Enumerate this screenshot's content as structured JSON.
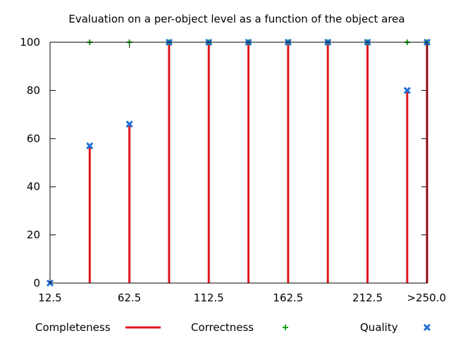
{
  "chart_data": {
    "type": "bar",
    "title": "Evaluation on a per-object level as a function of the object area",
    "xlabel": "",
    "ylabel": "",
    "x": [
      12.5,
      37.5,
      62.5,
      87.5,
      112.5,
      137.5,
      162.5,
      187.5,
      212.5,
      237.5,
      250.0
    ],
    "xlim": [
      12.5,
      250.0
    ],
    "ylim": [
      0,
      100
    ],
    "x_ticks": [
      {
        "value": 12.5,
        "label": "12.5"
      },
      {
        "value": 62.5,
        "label": "62.5"
      },
      {
        "value": 112.5,
        "label": "112.5"
      },
      {
        "value": 162.5,
        "label": "162.5"
      },
      {
        "value": 212.5,
        "label": "212.5"
      },
      {
        "value": 250.0,
        "label": ">250.0"
      }
    ],
    "y_ticks": [
      {
        "value": 0,
        "label": "0"
      },
      {
        "value": 20,
        "label": "20"
      },
      {
        "value": 40,
        "label": "40"
      },
      {
        "value": 60,
        "label": "60"
      },
      {
        "value": 80,
        "label": "80"
      },
      {
        "value": 100,
        "label": "100"
      }
    ],
    "grid": false,
    "legend_position": "bottom",
    "series": [
      {
        "name": "Completeness",
        "style": "impulses",
        "color": "#e0141c",
        "values": [
          0,
          57,
          66,
          100,
          100,
          100,
          100,
          100,
          100,
          80,
          100
        ]
      },
      {
        "name": "Correctness",
        "style": "plus-marker",
        "color": "#19a319",
        "values": [
          null,
          100,
          100,
          100,
          100,
          100,
          100,
          100,
          100,
          100,
          100
        ]
      },
      {
        "name": "Quality",
        "style": "x-marker",
        "color": "#1f6fd6",
        "values": [
          0,
          57,
          66,
          100,
          100,
          100,
          100,
          100,
          100,
          80,
          100
        ]
      }
    ]
  }
}
